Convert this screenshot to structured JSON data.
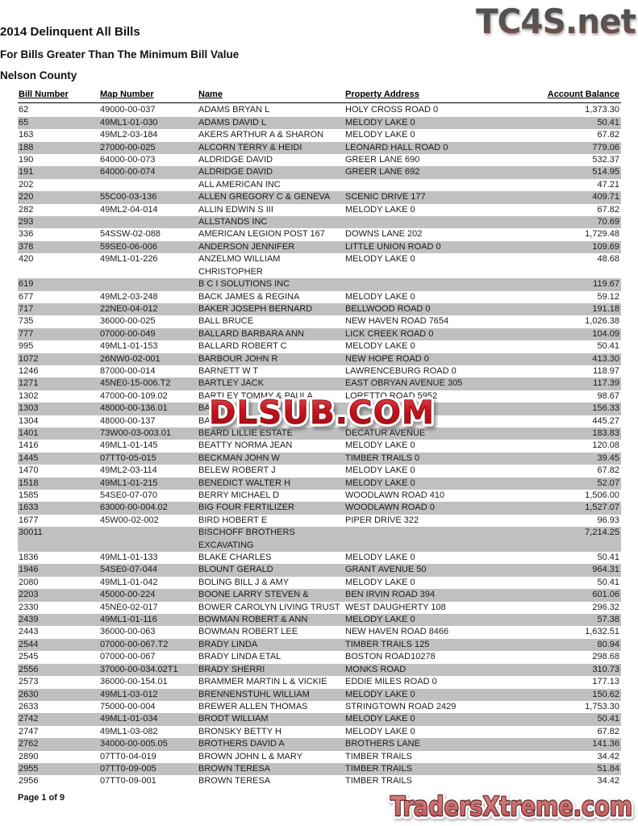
{
  "header": {
    "title": "2014 Delinquent All Bills",
    "subtitle": "For Bills Greater Than The Minimum Bill Value",
    "region": "Nelson County"
  },
  "watermarks": {
    "top_right": "TC4S.net",
    "center": "DLSUB.COM",
    "bottom_right": "TradersXtreme.com"
  },
  "footer": {
    "page_label": "Page 1 of 9"
  },
  "colors": {
    "row_shade": "#c0c0c0",
    "dlsub_red": "#c4121c",
    "traders_fill": "#cc6d6d",
    "traders_outline": "#5c2626",
    "tc4s_gray": "#545454",
    "tc4s_red_brown": "#7e4e46"
  },
  "table": {
    "headers": [
      "Bill Number",
      "Map Number",
      "Name",
      "Property Address",
      "Account Balance"
    ],
    "rows": [
      {
        "bill": "62",
        "map": "49000-00-037",
        "name": "ADAMS BRYAN L",
        "address": "HOLY CROSS ROAD 0",
        "balance": "1,373.30"
      },
      {
        "bill": "65",
        "map": "49ML1-01-030",
        "name": "ADAMS DAVID L",
        "address": "MELODY LAKE 0",
        "balance": "50.41"
      },
      {
        "bill": "163",
        "map": "49ML2-03-184",
        "name": "AKERS ARTHUR A & SHARON",
        "address": "MELODY LAKE 0",
        "balance": "67.82"
      },
      {
        "bill": "188",
        "map": "27000-00-025",
        "name": "ALCORN TERRY & HEIDI",
        "address": "LEONARD HALL ROAD 0",
        "balance": "779.06"
      },
      {
        "bill": "190",
        "map": "64000-00-073",
        "name": "ALDRIDGE DAVID",
        "address": "GREER LANE 690",
        "balance": "532.37"
      },
      {
        "bill": "191",
        "map": "64000-00-074",
        "name": "ALDRIDGE DAVID",
        "address": "GREER LANE 692",
        "balance": "514.95"
      },
      {
        "bill": "202",
        "map": "",
        "name": "ALL AMERICAN INC",
        "address": "",
        "balance": "47.21"
      },
      {
        "bill": "220",
        "map": "55C00-03-136",
        "name": "ALLEN GREGORY C & GENEVA",
        "address": "SCENIC DRIVE 177",
        "balance": "409.71"
      },
      {
        "bill": "282",
        "map": "49ML2-04-014",
        "name": "ALLIN EDWIN S III",
        "address": "MELODY LAKE 0",
        "balance": "67.82"
      },
      {
        "bill": "293",
        "map": "",
        "name": "ALLSTANDS INC",
        "address": "",
        "balance": "70.69"
      },
      {
        "bill": "336",
        "map": "54SSW-02-088",
        "name": "AMERICAN LEGION POST 167",
        "address": "DOWNS LANE 202",
        "balance": "1,729.48"
      },
      {
        "bill": "378",
        "map": "59SE0-06-006",
        "name": "ANDERSON JENNIFER",
        "address": "LITTLE UNION ROAD 0",
        "balance": "109.69"
      },
      {
        "bill": "420",
        "map": "49ML1-01-226",
        "name": "ANZELMO WILLIAM\nCHRISTOPHER",
        "address": "MELODY LAKE 0",
        "balance": "48.68"
      },
      {
        "bill": "619",
        "map": "",
        "name": "B C I SOLUTIONS INC",
        "address": "",
        "balance": "119.67"
      },
      {
        "bill": "677",
        "map": "49ML2-03-248",
        "name": "BACK JAMES & REGINA",
        "address": "MELODY LAKE 0",
        "balance": "59.12"
      },
      {
        "bill": "717",
        "map": "22NE0-04-012",
        "name": "BAKER JOSEPH BERNARD",
        "address": "BELLWOOD ROAD 0",
        "balance": "191.18"
      },
      {
        "bill": "735",
        "map": "36000-00-025",
        "name": "BALL BRUCE",
        "address": "NEW HAVEN ROAD 7654",
        "balance": "1,026.38"
      },
      {
        "bill": "777",
        "map": "07000-00-049",
        "name": "BALLARD BARBARA ANN",
        "address": "LICK CREEK ROAD 0",
        "balance": "104.09"
      },
      {
        "bill": "995",
        "map": "49ML1-01-153",
        "name": "BALLARD ROBERT C",
        "address": "MELODY LAKE 0",
        "balance": "50.41"
      },
      {
        "bill": "1072",
        "map": "26NW0-02-001",
        "name": "BARBOUR JOHN R",
        "address": "NEW HOPE ROAD 0",
        "balance": "413.30"
      },
      {
        "bill": "1246",
        "map": "87000-00-014",
        "name": "BARNETT W T",
        "address": "LAWRENCEBURG ROAD 0",
        "balance": "118.97"
      },
      {
        "bill": "1271",
        "map": "45NE0-15-006.T2",
        "name": "BARTLEY JACK",
        "address": "EAST OBRYAN AVENUE 305",
        "balance": "117.39"
      },
      {
        "bill": "1302",
        "map": "47000-00-109.02",
        "name": "BARTLEY TOMMY & PAULA",
        "address": "LORETTO ROAD 5952",
        "balance": "98.67"
      },
      {
        "bill": "1303",
        "map": "48000-00-136.01",
        "name": "BA",
        "address": "",
        "balance": "156.33"
      },
      {
        "bill": "1304",
        "map": "48000-00-137",
        "name": "BA",
        "address": "",
        "balance": "445.27"
      },
      {
        "bill": "1401",
        "map": "73W00-03-003.01",
        "name": "BEARD LILLIE ESTATE",
        "address": "DECATUR AVENUE",
        "balance": "183.83"
      },
      {
        "bill": "1416",
        "map": "49ML1-01-145",
        "name": "BEATTY NORMA JEAN",
        "address": "MELODY LAKE 0",
        "balance": "120.08"
      },
      {
        "bill": "1445",
        "map": "07TT0-05-015",
        "name": "BECKMAN JOHN W",
        "address": "TIMBER TRAILS 0",
        "balance": "39.45"
      },
      {
        "bill": "1470",
        "map": "49ML2-03-114",
        "name": "BELEW ROBERT J",
        "address": "MELODY LAKE 0",
        "balance": "67.82"
      },
      {
        "bill": "1518",
        "map": "49ML1-01-215",
        "name": "BENEDICT WALTER H",
        "address": "MELODY LAKE 0",
        "balance": "52.07"
      },
      {
        "bill": "1585",
        "map": "54SE0-07-070",
        "name": "BERRY MICHAEL D",
        "address": "WOODLAWN ROAD 410",
        "balance": "1,506.00"
      },
      {
        "bill": "1633",
        "map": "63000-00-004.02",
        "name": "BIG FOUR FERTILIZER",
        "address": "WOODLAWN ROAD 0",
        "balance": "1,527.07"
      },
      {
        "bill": "1677",
        "map": "45W00-02-002",
        "name": "BIRD HOBERT E",
        "address": "PIPER DRIVE 322",
        "balance": "96.93"
      },
      {
        "bill": "30011",
        "map": "",
        "name": "BISCHOFF BROTHERS\nEXCAVATING",
        "address": "",
        "balance": "7,214.25"
      },
      {
        "bill": "1836",
        "map": "49ML1-01-133",
        "name": "BLAKE CHARLES",
        "address": "MELODY LAKE 0",
        "balance": "50.41"
      },
      {
        "bill": "1946",
        "map": "54SE0-07-044",
        "name": "BLOUNT GERALD",
        "address": "GRANT AVENUE 50",
        "balance": "964.31"
      },
      {
        "bill": "2080",
        "map": "49ML1-01-042",
        "name": "BOLING BILL J & AMY",
        "address": "MELODY LAKE 0",
        "balance": "50.41"
      },
      {
        "bill": "2203",
        "map": "45000-00-224",
        "name": "BOONE LARRY STEVEN &",
        "address": "BEN IRVIN ROAD 394",
        "balance": "601.06"
      },
      {
        "bill": "2330",
        "map": "45NE0-02-017",
        "name": "BOWER CAROLYN LIVING TRUST",
        "address": "WEST DAUGHERTY 108",
        "balance": "296.32"
      },
      {
        "bill": "2439",
        "map": "49ML1-01-116",
        "name": "BOWMAN ROBERT & ANN",
        "address": "MELODY LAKE 0",
        "balance": "57.38"
      },
      {
        "bill": "2443",
        "map": "36000-00-063",
        "name": "BOWMAN ROBERT LEE",
        "address": "NEW HAVEN ROAD 8466",
        "balance": "1,632.51"
      },
      {
        "bill": "2544",
        "map": "07000-00-067.T2",
        "name": "BRADY LINDA",
        "address": "TIMBER TRAILS 125",
        "balance": "80.94"
      },
      {
        "bill": "2545",
        "map": "07000-00-067",
        "name": "BRADY LINDA ETAL",
        "address": "BOSTON ROAD10278",
        "balance": "298.68"
      },
      {
        "bill": "2556",
        "map": "37000-00-034.02T1",
        "name": "BRADY SHERRI",
        "address": "MONKS ROAD",
        "balance": "310.73"
      },
      {
        "bill": "2573",
        "map": "36000-00-154.01",
        "name": "BRAMMER MARTIN L & VICKIE",
        "address": "EDDIE MILES ROAD 0",
        "balance": "177.13"
      },
      {
        "bill": "2630",
        "map": "49ML1-03-012",
        "name": "BRENNENSTUHL WILLIAM",
        "address": "MELODY LAKE 0",
        "balance": "150.62"
      },
      {
        "bill": "2633",
        "map": "75000-00-004",
        "name": "BREWER ALLEN THOMAS",
        "address": "STRINGTOWN ROAD 2429",
        "balance": "1,753.30"
      },
      {
        "bill": "2742",
        "map": "49ML1-01-034",
        "name": "BRODT WILLIAM",
        "address": "MELODY LAKE 0",
        "balance": "50.41"
      },
      {
        "bill": "2747",
        "map": "49ML1-03-082",
        "name": "BRONSKY BETTY H",
        "address": "MELODY LAKE 0",
        "balance": "67.82"
      },
      {
        "bill": "2762",
        "map": "34000-00-005.05",
        "name": "BROTHERS DAVID A",
        "address": "BROTHERS LANE",
        "balance": "141.36"
      },
      {
        "bill": "2890",
        "map": "07TT0-04-019",
        "name": "BROWN JOHN L & MARY",
        "address": "TIMBER TRAILS",
        "balance": "34.42"
      },
      {
        "bill": "2955",
        "map": "07TT0-09-005",
        "name": "BROWN TERESA",
        "address": "TIMBER TRAILS",
        "balance": "51.84"
      },
      {
        "bill": "2956",
        "map": "07TT0-09-001",
        "name": "BROWN TERESA",
        "address": "TIMBER TRAILS",
        "balance": "34.42"
      }
    ]
  }
}
